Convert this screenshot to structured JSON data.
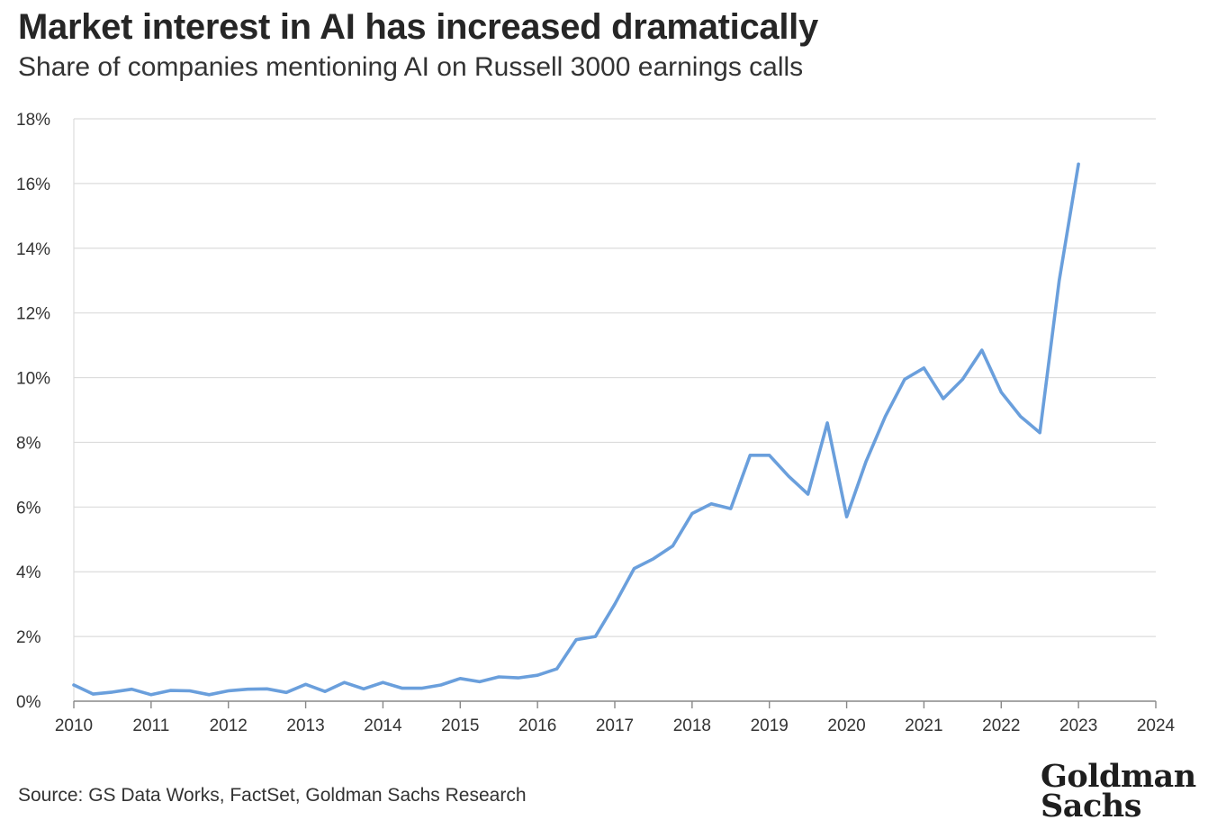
{
  "title": "Market interest in AI has increased dramatically",
  "subtitle": "Share of companies mentioning AI on Russell 3000 earnings calls",
  "source": "Source: GS Data Works, FactSet, Goldman Sachs Research",
  "logo": "Goldman Sachs",
  "colors": {
    "line": "#6a9fdc",
    "grid": "#dcdcdc",
    "axis": "#888888",
    "text": "#333333"
  },
  "chart_data": {
    "type": "line",
    "title": "Market interest in AI has increased dramatically",
    "subtitle": "Share of companies mentioning AI on Russell 3000 earnings calls",
    "xlim": [
      2010,
      2024
    ],
    "ylim": [
      0,
      18
    ],
    "x_ticks": [
      2010,
      2011,
      2012,
      2013,
      2014,
      2015,
      2016,
      2017,
      2018,
      2019,
      2020,
      2021,
      2022,
      2023,
      2024
    ],
    "x_tick_labels": [
      "2010",
      "2011",
      "2012",
      "2013",
      "2014",
      "2015",
      "2016",
      "2017",
      "2018",
      "2019",
      "2020",
      "2021",
      "2022",
      "2023",
      "2024"
    ],
    "y_ticks": [
      0,
      2,
      4,
      6,
      8,
      10,
      12,
      14,
      16,
      18
    ],
    "y_tick_labels": [
      "0%",
      "2%",
      "4%",
      "6%",
      "8%",
      "10%",
      "12%",
      "14%",
      "16%",
      "18%"
    ],
    "grid": true,
    "legend": "none",
    "series": [
      {
        "x": [
          2010.0,
          2010.25,
          2010.5,
          2010.75,
          2011.0,
          2011.25,
          2011.5,
          2011.75,
          2012.0,
          2012.25,
          2012.5,
          2012.75,
          2013.0,
          2013.25,
          2013.5,
          2013.75,
          2014.0,
          2014.25,
          2014.5,
          2014.75,
          2015.0,
          2015.25,
          2015.5,
          2015.75,
          2016.0,
          2016.25,
          2016.5,
          2016.75,
          2017.0,
          2017.25,
          2017.5,
          2017.75,
          2018.0,
          2018.25,
          2018.5,
          2018.75,
          2019.0,
          2019.25,
          2019.5,
          2019.75,
          2020.0,
          2020.25,
          2020.5,
          2020.75,
          2021.0,
          2021.25,
          2021.5,
          2021.75,
          2022.0,
          2022.25,
          2022.5,
          2022.75,
          2023.0
        ],
        "values": [
          0.5,
          0.22,
          0.28,
          0.37,
          0.2,
          0.33,
          0.32,
          0.2,
          0.32,
          0.37,
          0.38,
          0.27,
          0.52,
          0.3,
          0.58,
          0.38,
          0.58,
          0.4,
          0.4,
          0.5,
          0.7,
          0.6,
          0.75,
          0.72,
          0.8,
          1.0,
          1.9,
          2.0,
          3.0,
          4.1,
          4.4,
          4.8,
          5.8,
          6.1,
          5.95,
          7.6,
          7.6,
          6.95,
          6.4,
          8.6,
          5.7,
          7.4,
          8.8,
          9.95,
          10.3,
          9.35,
          9.95,
          10.85,
          9.55,
          8.8,
          8.3,
          13.0,
          16.6
        ]
      }
    ]
  }
}
